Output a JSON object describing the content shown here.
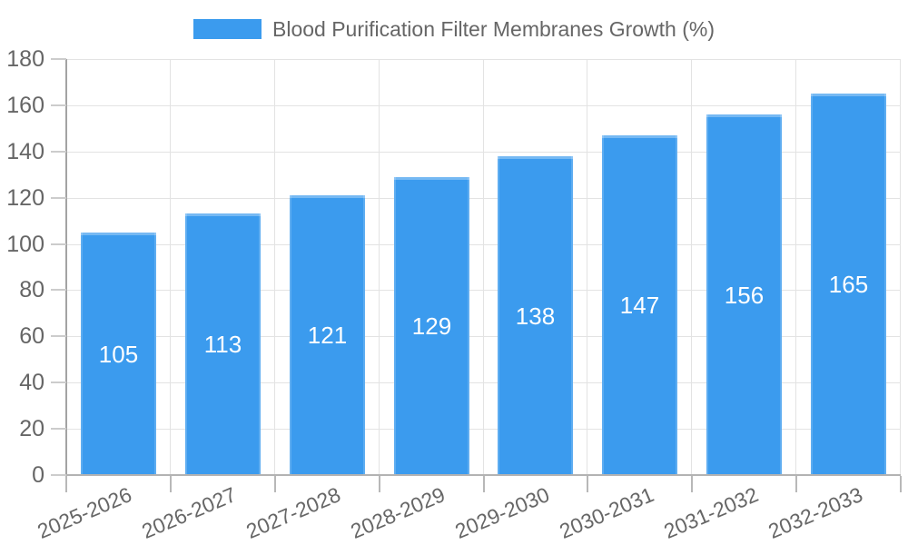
{
  "chart_data": {
    "type": "bar",
    "title": "Blood Purification Filter Membranes Growth (%)",
    "legend_position": "top",
    "categories": [
      "2025-2026",
      "2026-2027",
      "2027-2028",
      "2028-2029",
      "2029-2030",
      "2030-2031",
      "2031-2032",
      "2032-2033"
    ],
    "values": [
      105,
      113,
      121,
      129,
      138,
      147,
      156,
      165
    ],
    "xlabel": "",
    "ylabel": "",
    "ylim": [
      0,
      180
    ],
    "yticks": [
      0,
      20,
      40,
      60,
      80,
      100,
      120,
      140,
      160,
      180
    ],
    "grid": true,
    "value_labels_shown": true,
    "colors": {
      "bar": "#3B9BEE",
      "value_label": "#FFFFFF",
      "axis_text": "#666666",
      "legend_text": "#666666",
      "grid_line": "#E3E3E3",
      "axis_line_y": "#A3A3A3",
      "axis_line_x": "#B3B3B3",
      "tick_mark_y": "#CCCCCC",
      "tick_mark_x": "#B8B8B8",
      "background": "#FFFFFF"
    }
  }
}
